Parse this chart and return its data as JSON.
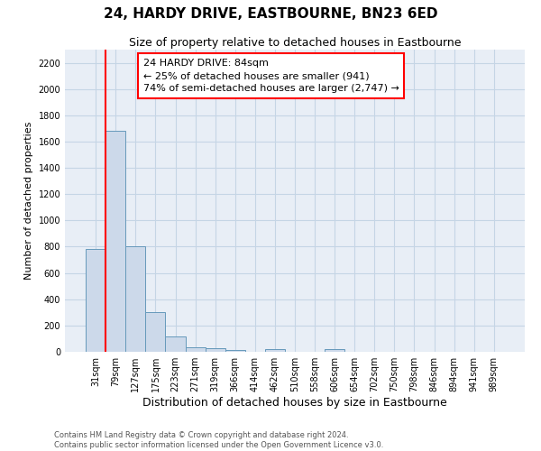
{
  "title": "24, HARDY DRIVE, EASTBOURNE, BN23 6ED",
  "subtitle": "Size of property relative to detached houses in Eastbourne",
  "xlabel": "Distribution of detached houses by size in Eastbourne",
  "ylabel": "Number of detached properties",
  "categories": [
    "31sqm",
    "79sqm",
    "127sqm",
    "175sqm",
    "223sqm",
    "271sqm",
    "319sqm",
    "366sqm",
    "414sqm",
    "462sqm",
    "510sqm",
    "558sqm",
    "606sqm",
    "654sqm",
    "702sqm",
    "750sqm",
    "798sqm",
    "846sqm",
    "894sqm",
    "941sqm",
    "989sqm"
  ],
  "values": [
    780,
    1680,
    800,
    300,
    115,
    35,
    25,
    15,
    0,
    20,
    0,
    0,
    20,
    0,
    0,
    0,
    0,
    0,
    0,
    0,
    0
  ],
  "bar_color": "#ccd9ea",
  "bar_edge_color": "#6699bb",
  "red_line_x": 0.5,
  "ylim_max": 2300,
  "yticks": [
    0,
    200,
    400,
    600,
    800,
    1000,
    1200,
    1400,
    1600,
    1800,
    2000,
    2200
  ],
  "annotation_line1": "24 HARDY DRIVE: 84sqm",
  "annotation_line2": "← 25% of detached houses are smaller (941)",
  "annotation_line3": "74% of semi-detached houses are larger (2,747) →",
  "grid_color": "#c5d5e5",
  "bg_color": "#e8eef6",
  "footer1": "Contains HM Land Registry data © Crown copyright and database right 2024.",
  "footer2": "Contains public sector information licensed under the Open Government Licence v3.0.",
  "title_fontsize": 11,
  "subtitle_fontsize": 9,
  "ylabel_fontsize": 8,
  "xlabel_fontsize": 9,
  "tick_fontsize": 7,
  "annot_fontsize": 8,
  "footer_fontsize": 6
}
